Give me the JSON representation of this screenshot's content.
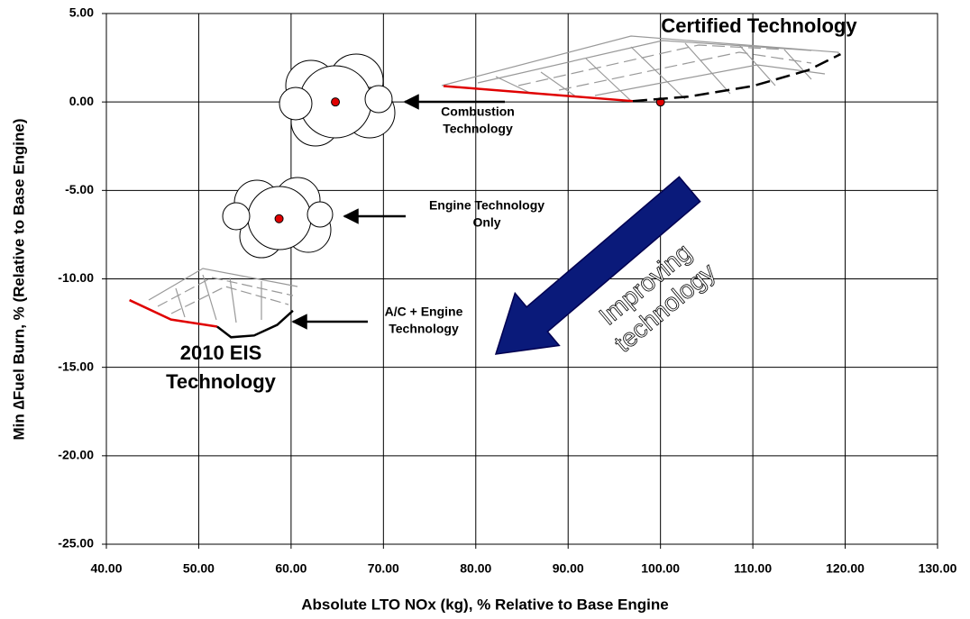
{
  "chart_data": {
    "type": "scatter",
    "x_label": "Absolute LTO NOx (kg), % Relative to Base Engine",
    "y_label": "Min ∆Fuel Burn, % (Relative to Base Engine)",
    "xlim": [
      40,
      130
    ],
    "xticks": [
      {
        "value": 40,
        "label": "40.00"
      },
      {
        "value": 50,
        "label": "50.00"
      },
      {
        "value": 60,
        "label": "60.00"
      },
      {
        "value": 70,
        "label": "70.00"
      },
      {
        "value": 80,
        "label": "80.00"
      },
      {
        "value": 90,
        "label": "90.00"
      },
      {
        "value": 100,
        "label": "100.00"
      },
      {
        "value": 110,
        "label": "110.00"
      },
      {
        "value": 120,
        "label": "120.00"
      },
      {
        "value": 130,
        "label": "130.00"
      }
    ],
    "ylim": [
      -25,
      5
    ],
    "yticks": [
      {
        "value": -25,
        "label": "-25.00"
      },
      {
        "value": -20,
        "label": "-20.00"
      },
      {
        "value": -15,
        "label": "-15.00"
      },
      {
        "value": -10,
        "label": "-10.00"
      },
      {
        "value": -5,
        "label": "-5.00"
      },
      {
        "value": 0,
        "label": "0.00"
      },
      {
        "value": 5,
        "label": "5.00"
      }
    ],
    "grid": true,
    "series": [
      {
        "kind": "points",
        "color": "#e00000",
        "x": [
          100,
          64.8,
          58.7
        ],
        "values": [
          0,
          0,
          -6.6
        ]
      },
      {
        "kind": "line",
        "color": "#e00000",
        "x": [
          76.5,
          97
        ],
        "values": [
          0.9,
          0.05
        ]
      },
      {
        "kind": "dashed",
        "color": "#000000",
        "x": [
          97,
          103,
          110,
          116,
          119.5
        ],
        "values": [
          0.05,
          0.3,
          0.9,
          1.8,
          2.7
        ]
      },
      {
        "kind": "line",
        "color": "#e00000",
        "x": [
          42.5,
          47,
          52
        ],
        "values": [
          -11.2,
          -12.3,
          -12.7
        ]
      },
      {
        "kind": "line",
        "color": "#000000",
        "x": [
          52,
          53.5,
          56,
          58.5,
          60.2
        ],
        "values": [
          -12.7,
          -13.3,
          -13.2,
          -12.6,
          -11.8
        ]
      }
    ],
    "annotations": [
      {
        "text": [
          "Certified Technology"
        ]
      },
      {
        "text": [
          "Combustion",
          "Technology"
        ]
      },
      {
        "text": [
          "Engine Technology",
          "Only"
        ]
      },
      {
        "text": [
          "A/C + Engine",
          "Technology"
        ]
      },
      {
        "text": [
          "2010 EIS",
          "Technology"
        ]
      },
      {
        "text": [
          "Improving",
          "technology"
        ]
      }
    ]
  }
}
